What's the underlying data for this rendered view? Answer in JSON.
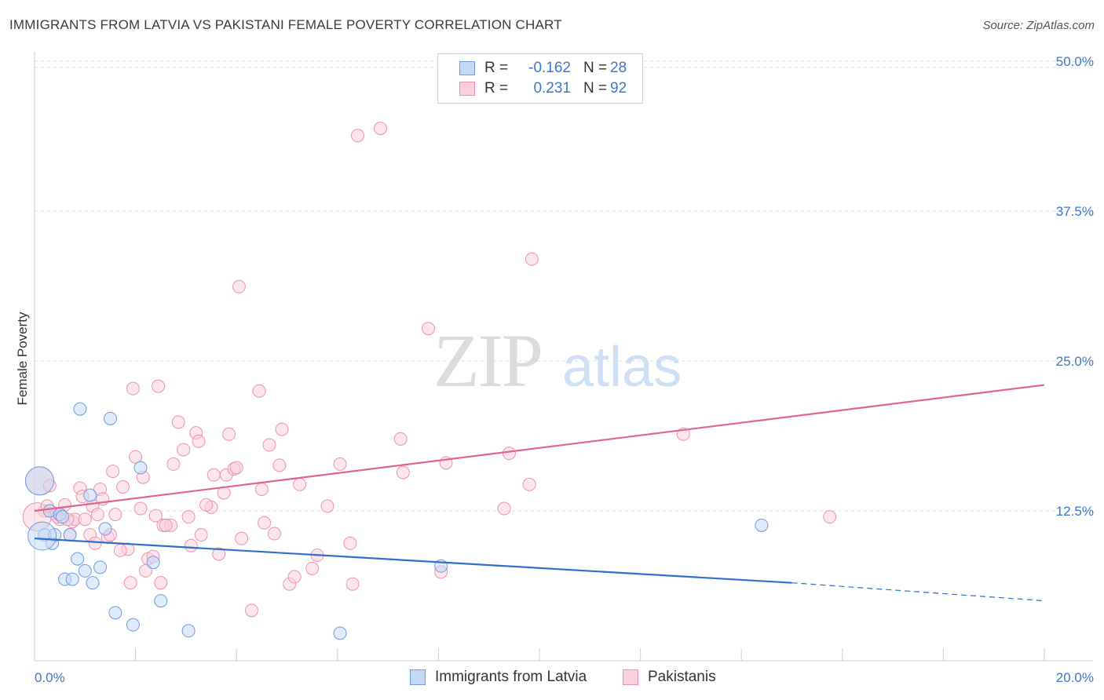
{
  "title": "IMMIGRANTS FROM LATVIA VS PAKISTANI FEMALE POVERTY CORRELATION CHART",
  "source": "Source: ZipAtlas.com",
  "watermark": {
    "zip": "ZIP",
    "atlas": "atlas"
  },
  "legend": {
    "rows": [
      {
        "r_label": "R =",
        "r_value": "-0.162",
        "n_label": "N =",
        "n_value": "28",
        "fill": "#c5d8f5",
        "stroke": "#6f9be0"
      },
      {
        "r_label": "R =",
        "r_value": "0.231",
        "n_label": "N =",
        "n_value": "92",
        "fill": "#fbd0dc",
        "stroke": "#ec93ae"
      }
    ]
  },
  "bottom_legend": [
    "Immigrants from Latvia",
    "Pakistanis"
  ],
  "chart_data": {
    "type": "scatter",
    "title": "IMMIGRANTS FROM LATVIA VS PAKISTANI FEMALE POVERTY CORRELATION CHART",
    "xlabel": "",
    "ylabel": "Female Poverty",
    "xlim": [
      0,
      20
    ],
    "ylim": [
      0,
      50
    ],
    "x_tick_labels": [
      "0.0%",
      "20.0%"
    ],
    "y_ticks": [
      12.5,
      25.0,
      37.5,
      50.0
    ],
    "y_tick_labels": [
      "12.5%",
      "25.0%",
      "37.5%",
      "50.0%"
    ],
    "grid": true,
    "legend_position": "top-center",
    "series": [
      {
        "name": "Immigrants from Latvia",
        "color": "#6f9be0",
        "fill": "#c5d8f5",
        "line_color": "#2f6fcc",
        "trend": {
          "x_start": 0,
          "y_start": 10.2,
          "x_solid_end": 15.0,
          "y_solid_end": 6.5,
          "x_end": 20,
          "y_end": 5.0
        },
        "points": [
          [
            0.1,
            15.0
          ],
          [
            0.2,
            10.5
          ],
          [
            0.3,
            12.5
          ],
          [
            0.35,
            9.8
          ],
          [
            0.4,
            10.5
          ],
          [
            0.5,
            12.2
          ],
          [
            0.55,
            12.0
          ],
          [
            0.6,
            6.8
          ],
          [
            0.7,
            10.5
          ],
          [
            0.75,
            6.8
          ],
          [
            0.85,
            8.5
          ],
          [
            0.9,
            21.0
          ],
          [
            1.0,
            7.5
          ],
          [
            1.1,
            13.8
          ],
          [
            1.15,
            6.5
          ],
          [
            1.3,
            7.8
          ],
          [
            1.4,
            11.0
          ],
          [
            1.5,
            20.2
          ],
          [
            1.6,
            4.0
          ],
          [
            1.95,
            3.0
          ],
          [
            2.1,
            16.1
          ],
          [
            2.35,
            8.2
          ],
          [
            2.5,
            5.0
          ],
          [
            3.05,
            2.5
          ],
          [
            6.05,
            2.3
          ],
          [
            8.05,
            7.9
          ],
          [
            14.4,
            11.3
          ],
          [
            0.15,
            10.4
          ]
        ]
      },
      {
        "name": "Pakistanis",
        "color": "#ec93ae",
        "fill": "#fbd0dc",
        "line_color": "#e0668f",
        "trend": {
          "x_start": 0,
          "y_start": 12.5,
          "x_end": 20,
          "y_end": 23.0
        },
        "points": [
          [
            0.1,
            15.0
          ],
          [
            0.2,
            12.5
          ],
          [
            0.3,
            14.6
          ],
          [
            0.4,
            12.3
          ],
          [
            0.5,
            11.8
          ],
          [
            0.6,
            13.0
          ],
          [
            0.7,
            10.5
          ],
          [
            0.75,
            11.6
          ],
          [
            0.8,
            11.8
          ],
          [
            0.9,
            14.4
          ],
          [
            0.95,
            13.7
          ],
          [
            1.0,
            11.8
          ],
          [
            1.1,
            10.5
          ],
          [
            1.15,
            12.9
          ],
          [
            1.2,
            9.8
          ],
          [
            1.3,
            14.3
          ],
          [
            1.35,
            13.5
          ],
          [
            1.45,
            10.3
          ],
          [
            1.5,
            10.5
          ],
          [
            1.55,
            15.8
          ],
          [
            1.6,
            12.2
          ],
          [
            1.75,
            14.5
          ],
          [
            1.85,
            9.3
          ],
          [
            1.9,
            6.5
          ],
          [
            1.95,
            22.7
          ],
          [
            2.0,
            17.0
          ],
          [
            2.1,
            12.7
          ],
          [
            2.15,
            15.3
          ],
          [
            2.25,
            8.5
          ],
          [
            2.35,
            8.7
          ],
          [
            2.4,
            12.1
          ],
          [
            2.45,
            22.9
          ],
          [
            2.5,
            6.5
          ],
          [
            2.55,
            11.3
          ],
          [
            2.7,
            11.3
          ],
          [
            2.75,
            16.4
          ],
          [
            2.85,
            19.9
          ],
          [
            2.95,
            17.6
          ],
          [
            3.05,
            12.0
          ],
          [
            3.1,
            9.6
          ],
          [
            3.2,
            19.0
          ],
          [
            3.25,
            18.3
          ],
          [
            3.3,
            10.5
          ],
          [
            3.5,
            12.8
          ],
          [
            3.55,
            15.5
          ],
          [
            3.65,
            8.9
          ],
          [
            3.75,
            14.0
          ],
          [
            3.8,
            15.5
          ],
          [
            3.85,
            18.9
          ],
          [
            3.95,
            16.0
          ],
          [
            4.0,
            16.1
          ],
          [
            4.1,
            10.2
          ],
          [
            4.05,
            31.2
          ],
          [
            4.3,
            4.2
          ],
          [
            4.45,
            22.5
          ],
          [
            4.5,
            14.3
          ],
          [
            4.55,
            11.5
          ],
          [
            4.65,
            18.0
          ],
          [
            4.75,
            10.6
          ],
          [
            4.85,
            16.3
          ],
          [
            4.9,
            19.3
          ],
          [
            5.05,
            6.4
          ],
          [
            5.15,
            7.0
          ],
          [
            5.25,
            14.7
          ],
          [
            5.5,
            7.7
          ],
          [
            5.8,
            12.9
          ],
          [
            6.05,
            16.4
          ],
          [
            6.25,
            9.8
          ],
          [
            6.3,
            6.4
          ],
          [
            6.4,
            43.8
          ],
          [
            6.85,
            44.4
          ],
          [
            7.25,
            18.5
          ],
          [
            7.3,
            15.7
          ],
          [
            7.8,
            27.7
          ],
          [
            8.05,
            7.4
          ],
          [
            8.15,
            16.5
          ],
          [
            9.3,
            12.7
          ],
          [
            9.4,
            17.3
          ],
          [
            9.8,
            14.7
          ],
          [
            9.85,
            33.5
          ],
          [
            12.85,
            18.9
          ],
          [
            15.75,
            12.0
          ],
          [
            0.05,
            12.0
          ],
          [
            0.25,
            12.9
          ],
          [
            0.45,
            12.0
          ],
          [
            0.65,
            11.8
          ],
          [
            1.25,
            12.2
          ],
          [
            1.7,
            9.2
          ],
          [
            2.2,
            7.5
          ],
          [
            2.6,
            11.3
          ],
          [
            3.4,
            13.0
          ],
          [
            5.6,
            8.8
          ]
        ]
      }
    ]
  }
}
